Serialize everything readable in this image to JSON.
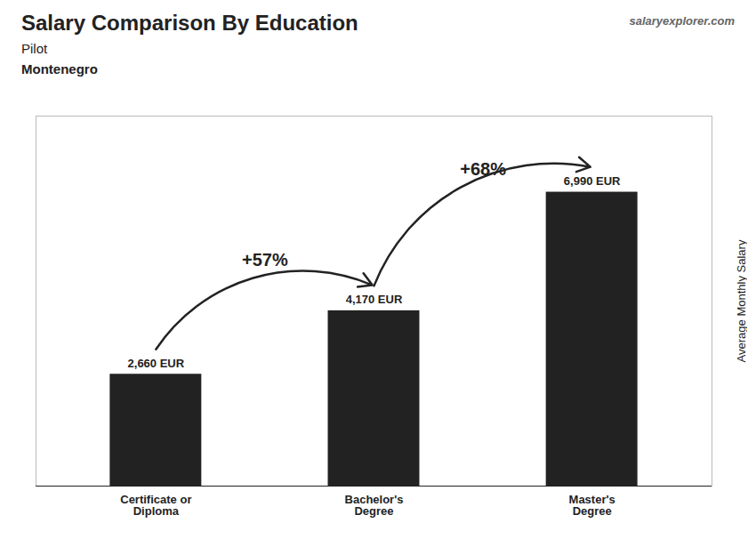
{
  "chart_data": {
    "type": "bar",
    "title": "Salary Comparison By Education",
    "subtitle": [
      "Pilot",
      "Montenegro"
    ],
    "source": "salaryexplorer.com",
    "categories": [
      "Certificate or\nDiploma",
      "Bachelor's\nDegree",
      "Master's\nDegree"
    ],
    "values": [
      2660,
      4170,
      6990
    ],
    "value_labels": [
      "2,660 EUR",
      "4,170 EUR",
      "6,990 EUR"
    ],
    "data_labels": true,
    "ylabel": "Average Monthly Salary",
    "ylim": [
      0,
      8800
    ],
    "yticks": [],
    "tick_labels": "x",
    "annotations": [
      "+57%",
      "+68%"
    ]
  }
}
